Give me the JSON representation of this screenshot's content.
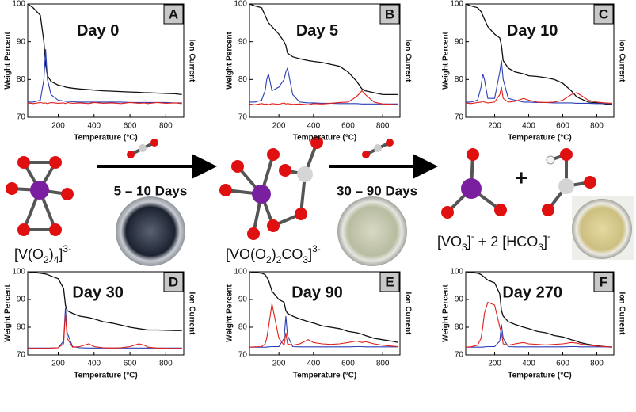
{
  "chart_data": [
    {
      "type": "line",
      "label": "A",
      "title": "Day 0",
      "xlabel": "Temperature (°C)",
      "ylabel": "Weight Percent",
      "y2label": "Ion Current",
      "x": [
        30,
        60,
        100,
        120,
        130,
        140,
        160,
        200,
        230,
        240,
        250,
        280,
        320,
        370,
        400,
        450,
        500,
        550,
        600,
        650,
        680,
        700,
        750,
        800,
        850,
        890
      ],
      "xlim": [
        30,
        900
      ],
      "xticks": [
        200,
        400,
        600,
        800
      ],
      "ylim": [
        70,
        100
      ],
      "yticks": [
        70,
        80,
        90,
        100
      ],
      "series": [
        {
          "color": "#111111",
          "values": [
            100,
            99,
            97,
            90,
            84,
            81,
            79.5,
            78.5,
            78.2,
            78,
            77.9,
            77.7,
            77.5,
            77.3,
            77.2,
            77,
            76.9,
            76.8,
            76.7,
            76.6,
            76.5,
            76.5,
            76.4,
            76.3,
            76.2,
            76
          ]
        },
        {
          "color": "#2a3fb5",
          "values": [
            74,
            74,
            74.5,
            80,
            88,
            80,
            76,
            74.5,
            74.3,
            74.2,
            74.2,
            74.1,
            74,
            74,
            74,
            74,
            74,
            74,
            73.9,
            73.9,
            73.9,
            73.9,
            73.9,
            73.9,
            73.8,
            73.8
          ]
        },
        {
          "color": "#e0201c",
          "values": [
            73.8,
            73.6,
            73.9,
            73.7,
            73.8,
            73.6,
            73.9,
            73.7,
            73.8,
            73.6,
            73.9,
            73.7,
            73.8,
            73.6,
            73.9,
            73.7,
            73.8,
            73.6,
            73.9,
            73.7,
            73.8,
            73.6,
            73.9,
            73.7,
            73.8,
            73.6
          ]
        }
      ]
    },
    {
      "type": "line",
      "label": "B",
      "title": "Day 5",
      "xlabel": "Temperature (°C)",
      "ylabel": "Weight Percent",
      "y2label": "Ion Current",
      "x": [
        30,
        60,
        100,
        120,
        130,
        140,
        160,
        200,
        230,
        240,
        250,
        280,
        320,
        370,
        400,
        450,
        500,
        550,
        600,
        650,
        680,
        700,
        750,
        800,
        850,
        890
      ],
      "xlim": [
        30,
        900
      ],
      "xticks": [
        200,
        400,
        600,
        800
      ],
      "ylim": [
        70,
        100
      ],
      "yticks": [
        70,
        80,
        90,
        100
      ],
      "series": [
        {
          "color": "#111111",
          "values": [
            100,
            99.5,
            99,
            97,
            96,
            95,
            94,
            92,
            90,
            89,
            87,
            86,
            85.5,
            85,
            84.8,
            84.5,
            84,
            83.5,
            82,
            79.5,
            77.5,
            77,
            76.5,
            76,
            76,
            76
          ]
        },
        {
          "color": "#2a3fb5",
          "values": [
            74,
            74,
            74.5,
            77,
            80,
            81.5,
            77,
            78,
            80,
            82,
            83,
            76,
            74,
            73.8,
            73.8,
            73.7,
            73.7,
            73.6,
            73.6,
            73.6,
            73.5,
            73.5,
            73.5,
            73.5,
            73.5,
            73.5
          ]
        },
        {
          "color": "#e0201c",
          "values": [
            73.5,
            73.3,
            73.6,
            73.4,
            73.5,
            73.3,
            73.6,
            73.4,
            73.8,
            73.5,
            73.6,
            73.4,
            73.5,
            73.3,
            73.6,
            73.5,
            73.7,
            73.9,
            74,
            75.5,
            77,
            76,
            74,
            73.5,
            73.4,
            73.3
          ]
        }
      ]
    },
    {
      "type": "line",
      "label": "C",
      "title": "Day 10",
      "xlabel": "Temperature (°C)",
      "ylabel": "Weight Percent",
      "y2label": "Ion Current",
      "x": [
        30,
        60,
        100,
        120,
        130,
        140,
        160,
        200,
        230,
        240,
        250,
        280,
        320,
        370,
        400,
        450,
        500,
        550,
        600,
        650,
        680,
        700,
        750,
        800,
        850,
        890
      ],
      "xlim": [
        30,
        900
      ],
      "xticks": [
        200,
        400,
        600,
        800
      ],
      "ylim": [
        70,
        100
      ],
      "yticks": [
        70,
        80,
        90,
        100
      ],
      "series": [
        {
          "color": "#111111",
          "values": [
            100,
            99.5,
            99,
            98,
            97,
            96,
            94,
            92,
            91,
            89,
            85,
            83,
            82,
            81.5,
            81,
            80.8,
            80.5,
            80,
            79,
            77,
            75.5,
            75,
            74,
            73.8,
            73.5,
            73.5
          ]
        },
        {
          "color": "#2a3fb5",
          "values": [
            74,
            74,
            74.5,
            78,
            81.5,
            80,
            75,
            75,
            82,
            85,
            80,
            75,
            74.5,
            74,
            74,
            73.9,
            73.9,
            73.8,
            73.8,
            73.8,
            73.7,
            73.7,
            73.7,
            73.6,
            73.6,
            73.6
          ]
        },
        {
          "color": "#e0201c",
          "values": [
            73.8,
            73.6,
            73.9,
            74,
            74.2,
            74,
            73.8,
            74,
            76,
            78,
            75,
            74,
            74.2,
            75,
            74.5,
            74,
            73.9,
            74,
            74.5,
            76,
            76.5,
            76,
            74.5,
            74,
            73.8,
            73.7
          ]
        }
      ]
    },
    {
      "type": "line",
      "label": "D",
      "title": "Day 30",
      "xlabel": "Temperature (°C)",
      "ylabel": "Weight Percent",
      "y2label": "Ion Current",
      "x": [
        30,
        60,
        100,
        120,
        130,
        140,
        160,
        200,
        230,
        240,
        250,
        280,
        320,
        370,
        400,
        450,
        500,
        550,
        600,
        650,
        680,
        700,
        750,
        800,
        850,
        890
      ],
      "xlim": [
        30,
        900
      ],
      "xticks": [
        200,
        400,
        600,
        800
      ],
      "ylim": [
        70,
        100
      ],
      "yticks": [
        70,
        80,
        90,
        100
      ],
      "series": [
        {
          "color": "#111111",
          "values": [
            100,
            99.8,
            99.5,
            99.3,
            99.2,
            99,
            98.5,
            97.5,
            94,
            88,
            86,
            85,
            84,
            83.5,
            83,
            82,
            81.5,
            80.8,
            80,
            79.5,
            79.2,
            79,
            79,
            78.9,
            78.8,
            78.8
          ]
        },
        {
          "color": "#2a3fb5",
          "values": [
            72.5,
            72.5,
            72.5,
            72.5,
            72.5,
            72.5,
            72.5,
            72.6,
            75,
            87,
            78,
            73,
            72.6,
            72.5,
            72.5,
            72.5,
            72.5,
            72.5,
            72.5,
            72.5,
            72.5,
            72.5,
            72.5,
            72.5,
            72.5,
            72.5
          ]
        },
        {
          "color": "#e0201c",
          "values": [
            72.3,
            72.4,
            72.3,
            72.5,
            72.4,
            72.3,
            72.5,
            72.6,
            74,
            85,
            76,
            72.8,
            73,
            74,
            73,
            72.6,
            72.5,
            72.6,
            73,
            74,
            73.5,
            72.8,
            72.5,
            72.4,
            72.3,
            72.4
          ]
        }
      ]
    },
    {
      "type": "line",
      "label": "E",
      "title": "Day 90",
      "xlabel": "Temperature (°C)",
      "ylabel": "Weight Percent",
      "y2label": "Ion Current",
      "x": [
        30,
        60,
        100,
        120,
        130,
        140,
        160,
        200,
        230,
        240,
        250,
        280,
        320,
        370,
        400,
        450,
        500,
        550,
        600,
        650,
        680,
        700,
        750,
        800,
        850,
        890
      ],
      "xlim": [
        30,
        900
      ],
      "xticks": [
        200,
        400,
        600,
        800
      ],
      "ylim": [
        70,
        100
      ],
      "yticks": [
        70,
        80,
        90,
        100
      ],
      "series": [
        {
          "color": "#111111",
          "values": [
            100,
            99.8,
            99.5,
            99,
            98,
            97,
            93,
            90,
            89,
            86,
            85,
            84,
            83,
            82,
            81.5,
            80.5,
            80,
            79.5,
            78.5,
            78,
            77.5,
            77,
            76,
            75.5,
            75,
            74.5
          ]
        },
        {
          "color": "#2a3fb5",
          "values": [
            72.8,
            72.8,
            72.8,
            72.8,
            72.8,
            72.9,
            73,
            73,
            76,
            84,
            77,
            73,
            72.9,
            72.9,
            72.9,
            72.9,
            72.9,
            72.9,
            72.9,
            73,
            73,
            72.9,
            72.9,
            72.9,
            72.9,
            72.9
          ]
        },
        {
          "color": "#e0201c",
          "values": [
            72.8,
            72.9,
            73,
            74,
            76,
            80,
            88.5,
            76,
            73.5,
            78,
            74,
            73.5,
            74,
            75.5,
            74.5,
            74,
            73.8,
            74,
            74.5,
            75,
            74.5,
            74.8,
            74,
            73.5,
            73.2,
            73
          ]
        }
      ]
    },
    {
      "type": "line",
      "label": "F",
      "title": "Day 270",
      "xlabel": "Temperature (°C)",
      "ylabel": "Weight Percent",
      "y2label": "Ion Current",
      "x": [
        30,
        60,
        100,
        120,
        130,
        140,
        160,
        200,
        230,
        240,
        250,
        280,
        320,
        370,
        400,
        450,
        500,
        550,
        600,
        650,
        680,
        700,
        750,
        800,
        850,
        890
      ],
      "xlim": [
        30,
        900
      ],
      "xticks": [
        200,
        400,
        600,
        800
      ],
      "ylim": [
        70,
        100
      ],
      "yticks": [
        70,
        80,
        90,
        100
      ],
      "series": [
        {
          "color": "#111111",
          "values": [
            100,
            99.8,
            99.5,
            99,
            98.5,
            98,
            97,
            96,
            92,
            86,
            84,
            82,
            81,
            80,
            79.5,
            78.5,
            78,
            77,
            76.5,
            75.5,
            75,
            74.5,
            73.8,
            73.3,
            73,
            72.8
          ]
        },
        {
          "color": "#2a3fb5",
          "values": [
            72.8,
            72.8,
            72.8,
            72.8,
            72.8,
            72.9,
            73,
            73,
            75,
            81,
            76,
            73,
            72.9,
            72.9,
            72.9,
            72.9,
            72.9,
            72.9,
            72.9,
            73,
            73,
            72.9,
            72.9,
            72.9,
            72.9,
            72.9
          ]
        },
        {
          "color": "#e0201c",
          "values": [
            72.8,
            72.9,
            73.5,
            76,
            80,
            85,
            89,
            88,
            80,
            78,
            74,
            73.5,
            74,
            74.5,
            74,
            73.8,
            73.6,
            73.8,
            74,
            74.5,
            74.3,
            74,
            73.5,
            73.2,
            73,
            72.8
          ]
        }
      ]
    }
  ],
  "scheme": {
    "steps": [
      "5 – 10 Days",
      "30 – 90 Days"
    ],
    "plus": "+",
    "species": [
      {
        "parts": [
          "[V(O",
          "2",
          ")",
          "4",
          "]",
          "3-"
        ]
      },
      {
        "parts": [
          "[VO(O",
          "2",
          ")",
          "2",
          "CO",
          "3",
          "]",
          "3-"
        ]
      },
      {
        "parts": [
          "[VO",
          "3",
          "]",
          "-",
          " + 2 [HCO",
          "3",
          "]",
          "-"
        ]
      }
    ]
  }
}
